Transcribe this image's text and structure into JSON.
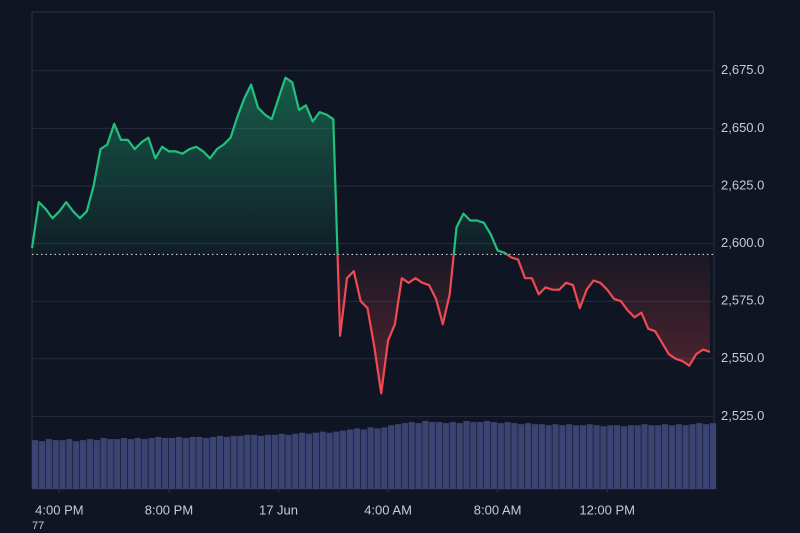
{
  "chart_data": {
    "type": "baseline",
    "x": [
      15,
      15.25,
      15.5,
      15.75,
      16,
      16.25,
      16.5,
      16.75,
      17,
      17.25,
      17.5,
      17.75,
      18,
      18.25,
      18.5,
      18.75,
      19,
      19.25,
      19.5,
      19.75,
      20,
      20.25,
      20.5,
      20.75,
      21,
      21.25,
      21.5,
      21.75,
      22,
      22.25,
      22.5,
      22.75,
      23,
      23.25,
      23.5,
      23.75,
      24,
      24.25,
      24.5,
      24.75,
      25,
      25.25,
      25.5,
      25.75,
      26,
      26.25,
      26.5,
      26.75,
      27,
      27.25,
      27.5,
      27.75,
      28,
      28.25,
      28.5,
      28.75,
      29,
      29.25,
      29.5,
      29.75,
      30,
      30.25,
      30.5,
      30.75,
      31,
      31.25,
      31.5,
      31.75,
      32,
      32.25,
      32.5,
      32.75,
      33,
      33.25,
      33.5,
      33.75,
      34,
      34.25,
      34.5,
      34.75,
      35,
      35.25,
      35.5,
      35.75,
      36,
      36.25,
      36.5,
      36.75,
      37,
      37.25,
      37.5,
      37.75,
      38,
      38.25,
      38.5,
      38.75,
      39,
      39.25,
      39.5,
      39.75
    ],
    "values": [
      2598,
      2618,
      2615,
      2611,
      2614,
      2618,
      2614,
      2611,
      2614,
      2625,
      2641,
      2643,
      2652,
      2645,
      2645,
      2641,
      2644,
      2646,
      2637,
      2642,
      2640,
      2640,
      2639,
      2641,
      2642,
      2640,
      2637,
      2641,
      2643,
      2646,
      2655,
      2663,
      2669,
      2659,
      2656,
      2654,
      2663,
      2672,
      2670,
      2658,
      2660,
      2653,
      2657,
      2656,
      2654,
      2560,
      2585,
      2588,
      2575,
      2572,
      2555,
      2535,
      2558,
      2565,
      2585,
      2583,
      2585,
      2583,
      2582,
      2576,
      2565,
      2578,
      2607,
      2613,
      2610,
      2610,
      2609,
      2604,
      2597,
      2596,
      2594,
      2593,
      2585,
      2585,
      2578,
      2581,
      2580,
      2580,
      2583,
      2582,
      2572,
      2580,
      2584,
      2583,
      2580,
      2576,
      2575,
      2571,
      2568,
      2570,
      2563,
      2562,
      2557,
      2552,
      2550,
      2549,
      2547,
      2552,
      2554,
      2553
    ],
    "volume": [
      46,
      45,
      47,
      46,
      46,
      47,
      45,
      46,
      47,
      46,
      48,
      47,
      47,
      48,
      47,
      48,
      47,
      48,
      49,
      48,
      48,
      49,
      48,
      49,
      49,
      48,
      49,
      50,
      49,
      50,
      50,
      51,
      51,
      50,
      51,
      51,
      52,
      51,
      52,
      53,
      52,
      53,
      54,
      53,
      54,
      55,
      56,
      57,
      56,
      58,
      57,
      58,
      60,
      61,
      62,
      63,
      62,
      64,
      63,
      63,
      62,
      63,
      62,
      64,
      63,
      63,
      64,
      63,
      62,
      63,
      62,
      61,
      62,
      61,
      61,
      60,
      61,
      60,
      61,
      60,
      60,
      61,
      60,
      59,
      60,
      60,
      59,
      60,
      60,
      61,
      60,
      60,
      61,
      60,
      61,
      60,
      61,
      62,
      61,
      62
    ],
    "baseline": 2595.3,
    "up_color": "#22c07f",
    "down_color": "#ef4a52",
    "volume_color": "#3a4372",
    "xlim": [
      15,
      39.9
    ],
    "xticks": [
      {
        "value": 16,
        "label": "4:00 PM"
      },
      {
        "value": 20,
        "label": "8:00 PM"
      },
      {
        "value": 24,
        "label": "17 Jun"
      },
      {
        "value": 28,
        "label": "4:00 AM"
      },
      {
        "value": 32,
        "label": "8:00 AM"
      },
      {
        "value": 36,
        "label": "12:00 PM"
      }
    ],
    "ylim": [
      2493.5,
      2700.5
    ],
    "yticks": [
      {
        "value": 2525,
        "label": "2,525.0"
      },
      {
        "value": 2550,
        "label": "2,550.0"
      },
      {
        "value": 2575,
        "label": "2,575.0"
      },
      {
        "value": 2600,
        "label": "2,600.0"
      },
      {
        "value": 2625,
        "label": "2,625.0"
      },
      {
        "value": 2650,
        "label": "2,650.0"
      },
      {
        "value": 2675,
        "label": "2,675.0"
      }
    ],
    "grid": true,
    "footnote": "77"
  }
}
